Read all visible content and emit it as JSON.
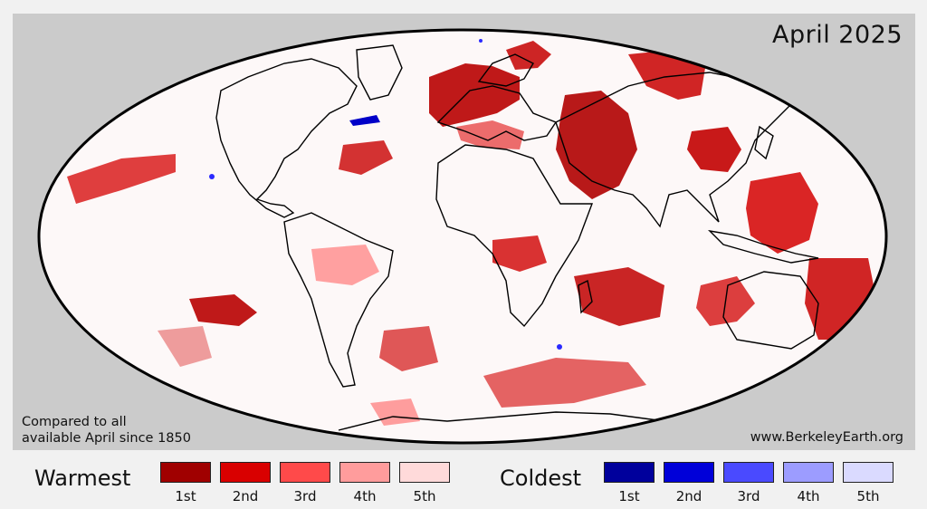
{
  "map": {
    "title": "April 2025",
    "note_line1": "Compared to all",
    "note_line2": "available April since 1850",
    "source": "www.BerkeleyEarth.org",
    "land_outline_color": "#000000",
    "ocean_fill_color": "#fdf8f8",
    "panel_color": "#cbcbcb"
  },
  "legend": {
    "warm": {
      "title": "Warmest",
      "items": [
        {
          "label": "1st",
          "color": "#a00000"
        },
        {
          "label": "2nd",
          "color": "#d90000"
        },
        {
          "label": "3rd",
          "color": "#ff4a4a"
        },
        {
          "label": "4th",
          "color": "#ff9c9c"
        },
        {
          "label": "5th",
          "color": "#ffdada"
        }
      ]
    },
    "cold": {
      "title": "Coldest",
      "items": [
        {
          "label": "1st",
          "color": "#00009c"
        },
        {
          "label": "2nd",
          "color": "#0000d9"
        },
        {
          "label": "3rd",
          "color": "#4a4aff"
        },
        {
          "label": "4th",
          "color": "#9c9cff"
        },
        {
          "label": "5th",
          "color": "#dadaff"
        }
      ]
    }
  }
}
